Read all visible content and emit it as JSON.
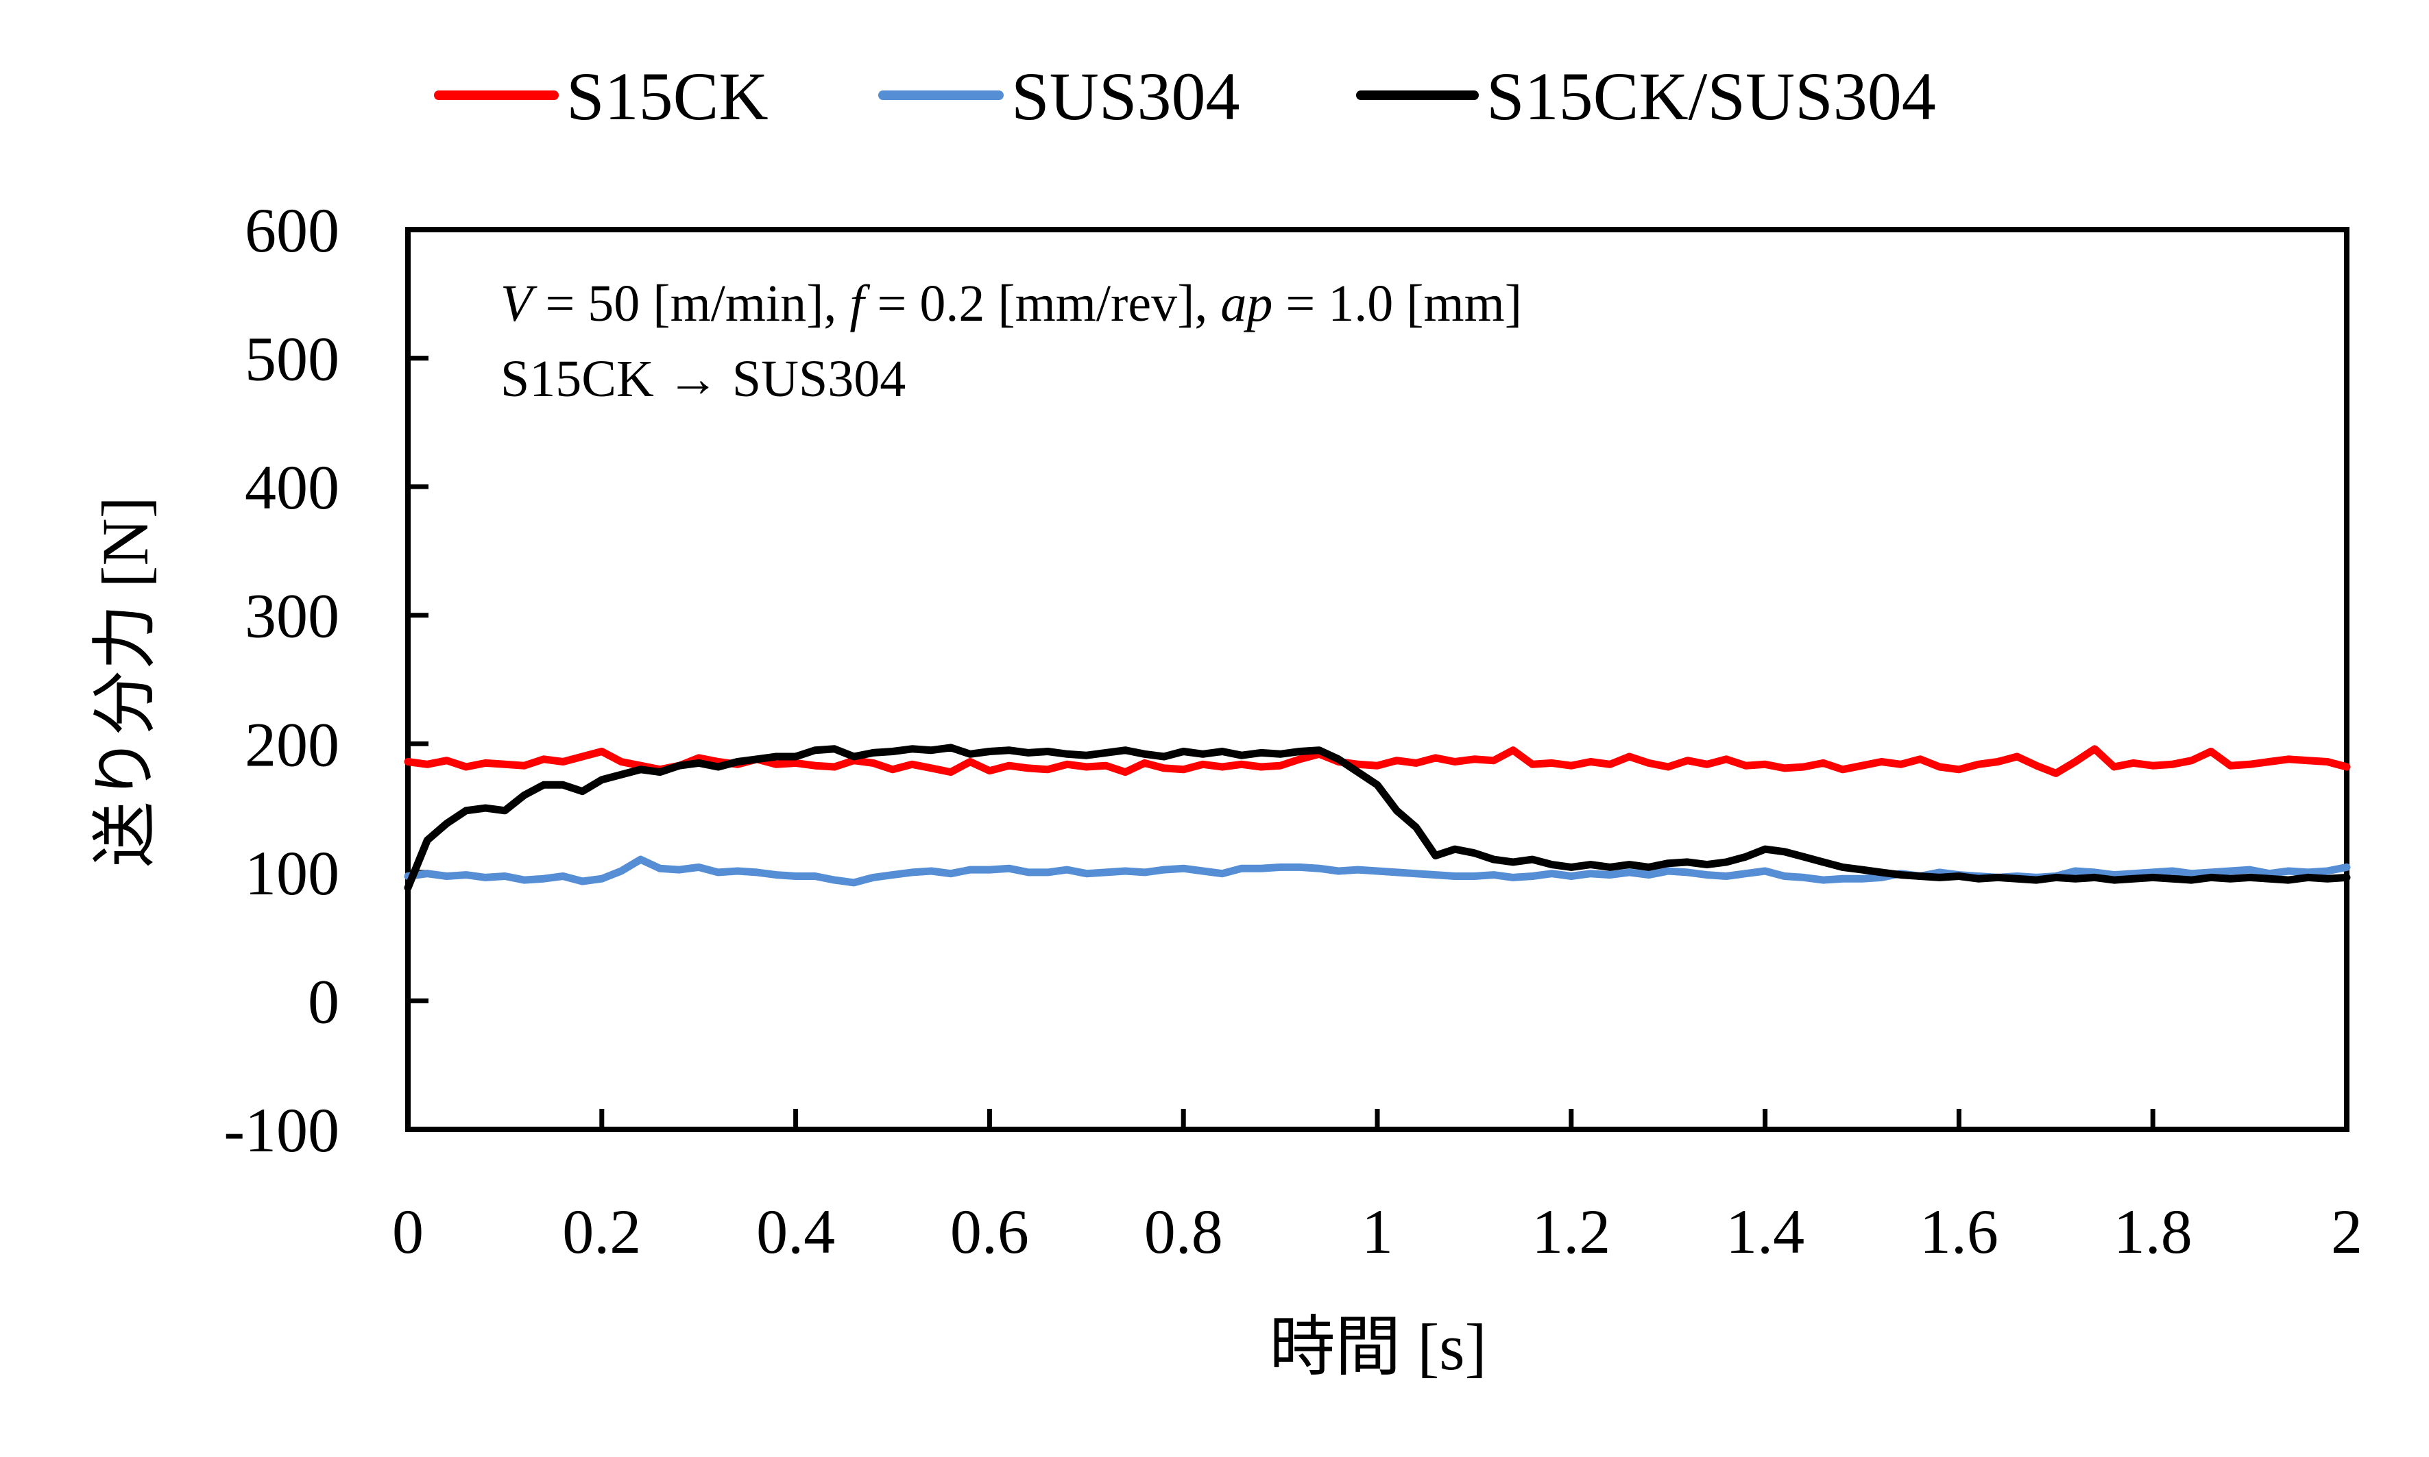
{
  "chart_data": {
    "type": "line",
    "title": "",
    "xlabel": "時間 [s]",
    "ylabel": "送り分力 [N]",
    "xlim": [
      0,
      2
    ],
    "ylim": [
      -100,
      600
    ],
    "xticks": [
      0,
      0.2,
      0.4,
      0.6,
      0.8,
      1,
      1.2,
      1.4,
      1.6,
      1.8,
      2
    ],
    "xtick_labels": [
      "0",
      "0.2",
      "0.4",
      "0.6",
      "0.8",
      "1",
      "1.2",
      "1.4",
      "1.6",
      "1.8",
      "2"
    ],
    "yticks": [
      -100,
      0,
      100,
      200,
      300,
      400,
      500,
      600
    ],
    "ytick_labels": [
      "-100",
      "0",
      "100",
      "200",
      "300",
      "400",
      "500",
      "600"
    ],
    "grid": false,
    "legend_position": "top-center",
    "annotation": {
      "line1": [
        {
          "text": "V",
          "italic": true
        },
        {
          "text": " = 50 [m/min], ",
          "italic": false
        },
        {
          "text": "f",
          "italic": true
        },
        {
          "text": " = 0.2 [mm/rev], ",
          "italic": false
        },
        {
          "text": "ap",
          "italic": true
        },
        {
          "text": " = 1.0 [mm]",
          "italic": false
        }
      ],
      "line2": "S15CK → SUS304"
    },
    "x": [
      0.0,
      0.02,
      0.04,
      0.06,
      0.08,
      0.1,
      0.12,
      0.14,
      0.16,
      0.18,
      0.2,
      0.22,
      0.24,
      0.26,
      0.28,
      0.3,
      0.32,
      0.34,
      0.36,
      0.38,
      0.4,
      0.42,
      0.44,
      0.46,
      0.48,
      0.5,
      0.52,
      0.54,
      0.56,
      0.58,
      0.6,
      0.62,
      0.64,
      0.66,
      0.68,
      0.7,
      0.72,
      0.74,
      0.76,
      0.78,
      0.8,
      0.82,
      0.84,
      0.86,
      0.88,
      0.9,
      0.92,
      0.94,
      0.96,
      0.98,
      1.0,
      1.02,
      1.04,
      1.06,
      1.08,
      1.1,
      1.12,
      1.14,
      1.16,
      1.18,
      1.2,
      1.22,
      1.24,
      1.26,
      1.28,
      1.3,
      1.32,
      1.34,
      1.36,
      1.38,
      1.4,
      1.42,
      1.44,
      1.46,
      1.48,
      1.5,
      1.52,
      1.54,
      1.56,
      1.58,
      1.6,
      1.62,
      1.64,
      1.66,
      1.68,
      1.7,
      1.72,
      1.74,
      1.76,
      1.78,
      1.8,
      1.82,
      1.84,
      1.86,
      1.88,
      1.9,
      1.92,
      1.94,
      1.96,
      1.98,
      2.0
    ],
    "series": [
      {
        "name": "S15CK",
        "color": "#FF0000",
        "values": [
          186,
          184,
          187,
          182,
          185,
          184,
          183,
          188,
          186,
          190,
          194,
          186,
          183,
          180,
          183,
          189,
          186,
          184,
          188,
          184,
          185,
          183,
          182,
          187,
          185,
          180,
          184,
          181,
          178,
          186,
          179,
          183,
          181,
          180,
          184,
          182,
          183,
          178,
          185,
          181,
          180,
          184,
          182,
          184,
          182,
          183,
          188,
          192,
          186,
          184,
          183,
          187,
          185,
          189,
          186,
          188,
          187,
          195,
          184,
          185,
          183,
          186,
          184,
          190,
          185,
          182,
          187,
          184,
          188,
          183,
          184,
          181,
          182,
          185,
          180,
          183,
          186,
          184,
          188,
          182,
          180,
          184,
          186,
          190,
          183,
          177,
          186,
          196,
          182,
          185,
          183,
          184,
          187,
          194,
          183,
          184,
          186,
          188,
          187,
          186,
          182
        ]
      },
      {
        "name": "SUS304",
        "color": "#558ED5",
        "values": [
          97,
          99,
          97,
          98,
          96,
          97,
          94,
          95,
          97,
          93,
          95,
          101,
          110,
          103,
          102,
          104,
          100,
          101,
          100,
          98,
          97,
          97,
          94,
          92,
          96,
          98,
          100,
          101,
          99,
          102,
          102,
          103,
          100,
          100,
          102,
          99,
          100,
          101,
          100,
          102,
          103,
          101,
          99,
          103,
          103,
          104,
          104,
          103,
          101,
          102,
          101,
          100,
          99,
          98,
          97,
          97,
          98,
          96,
          97,
          99,
          97,
          99,
          98,
          100,
          98,
          101,
          100,
          98,
          97,
          99,
          101,
          97,
          96,
          94,
          95,
          95,
          96,
          99,
          97,
          100,
          98,
          97,
          96,
          97,
          96,
          97,
          101,
          100,
          98,
          99,
          100,
          101,
          99,
          100,
          101,
          102,
          99,
          101,
          100,
          101,
          104
        ]
      },
      {
        "name": "S15CK/SUS304",
        "color": "#000000",
        "values": [
          88,
          125,
          138,
          148,
          150,
          148,
          160,
          168,
          168,
          163,
          172,
          176,
          180,
          178,
          183,
          185,
          182,
          186,
          188,
          190,
          190,
          195,
          196,
          190,
          193,
          194,
          196,
          195,
          197,
          192,
          194,
          195,
          193,
          194,
          192,
          191,
          193,
          195,
          192,
          190,
          194,
          192,
          194,
          191,
          193,
          192,
          194,
          195,
          188,
          178,
          168,
          148,
          135,
          113,
          118,
          115,
          110,
          108,
          110,
          106,
          104,
          106,
          104,
          106,
          104,
          107,
          108,
          106,
          108,
          112,
          118,
          116,
          112,
          108,
          104,
          102,
          100,
          98,
          97,
          96,
          97,
          95,
          96,
          95,
          94,
          96,
          95,
          96,
          94,
          95,
          96,
          95,
          94,
          96,
          95,
          96,
          95,
          94,
          96,
          95,
          96
        ]
      }
    ]
  }
}
